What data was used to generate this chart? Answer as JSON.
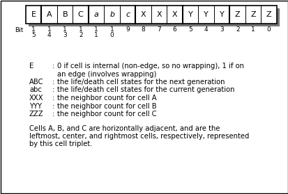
{
  "cells": [
    "E",
    "A",
    "B",
    "C",
    "a",
    "b",
    "c",
    "X",
    "X",
    "X",
    "Y",
    "Y",
    "Y",
    "Z",
    "Z",
    "Z"
  ],
  "italic_cells": [
    "a",
    "b",
    "c"
  ],
  "bit_row1": [
    "1",
    "1",
    "1",
    "1",
    "1",
    "1",
    "9",
    "8",
    "7",
    "6",
    "5",
    "4",
    "3",
    "2",
    "1",
    "0"
  ],
  "bit_row2": [
    "5",
    "4",
    "3",
    "2",
    "1",
    "0",
    "",
    "",
    "",
    "",
    "",
    "",
    "",
    "",
    "",
    ""
  ],
  "group_boundaries": [
    0,
    1,
    4,
    7,
    10,
    13,
    16
  ],
  "desc_keys": [
    "E",
    "ABC",
    "abc",
    "XXX",
    "YYY",
    "ZZZ"
  ],
  "desc_lines": [
    [
      "0 if cell is internal (non-edge, so no wrapping), 1 if on",
      "an edge (involves wrapping)"
    ],
    [
      "the life/death cell states for the next generation"
    ],
    [
      "the life/death cell states for the current generation"
    ],
    [
      "the neighbor count for cell A"
    ],
    [
      "the neighbor count for cell B"
    ],
    [
      "the neighbor count for cell C"
    ]
  ],
  "footer_lines": [
    "Cells A, B, and C are horizontally adjacent, and are the",
    "leftmost, center, and rightmost cells, respectively, represented",
    "by this cell triplet."
  ],
  "bg_color": "#ffffff",
  "cell_bg": "#ffffff",
  "border_color": "#000000",
  "shadow_color": "#777777",
  "text_color": "#000000"
}
